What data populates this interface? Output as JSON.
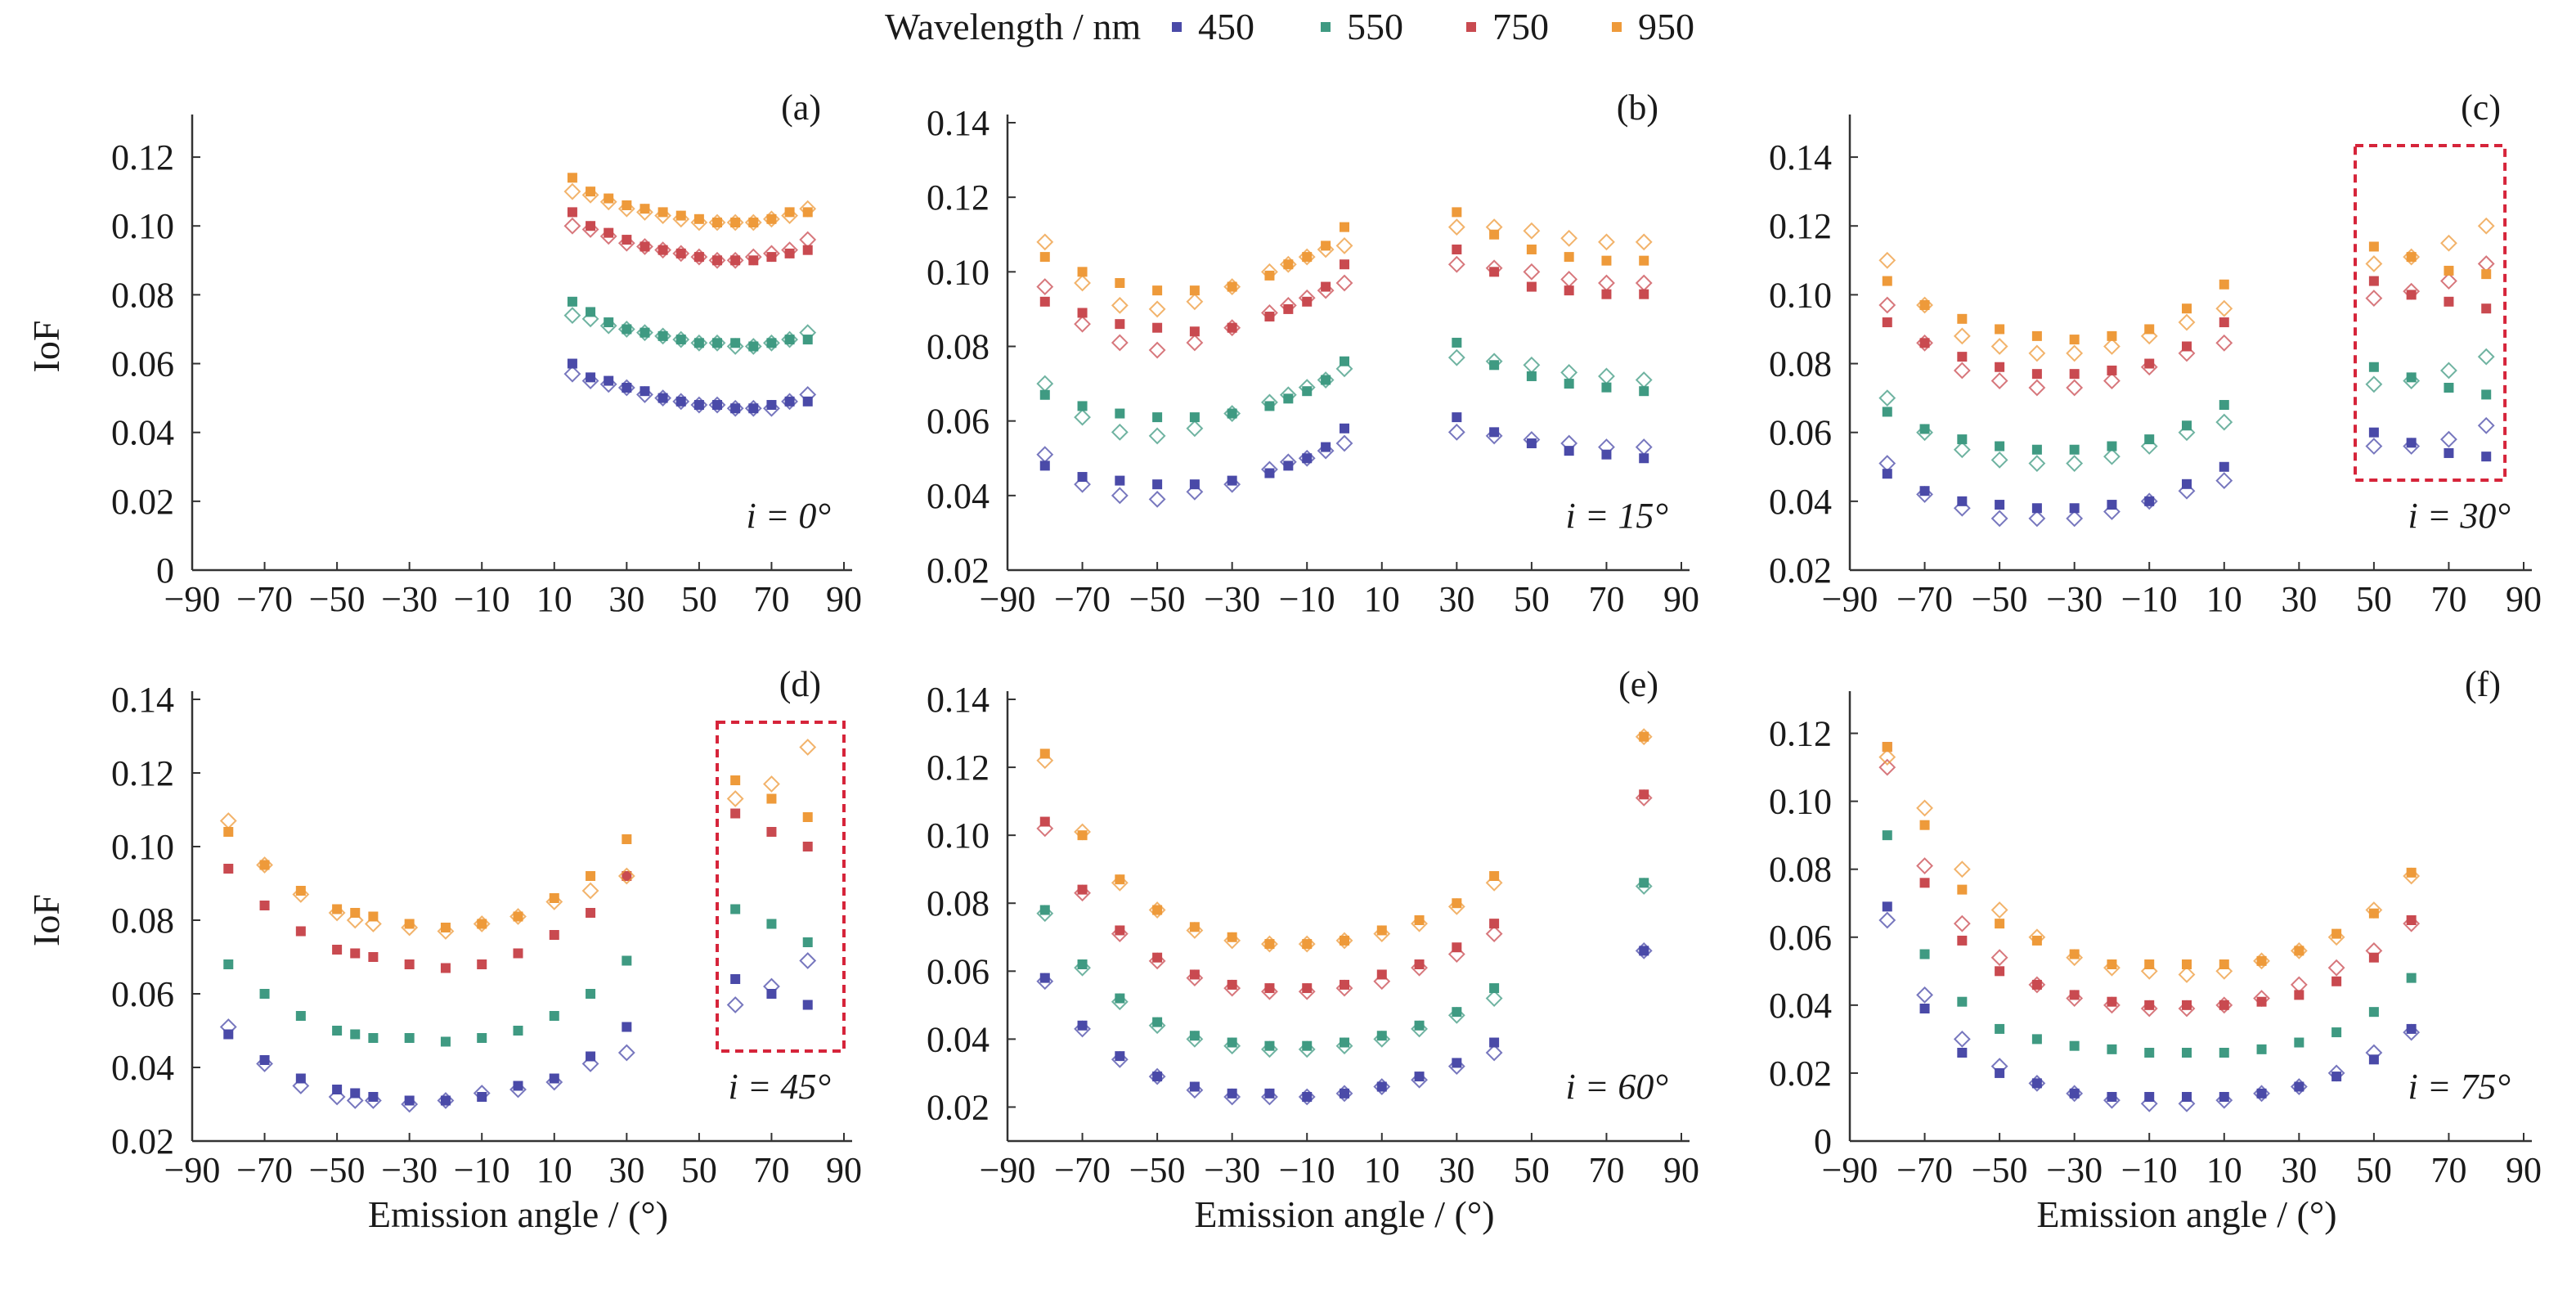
{
  "legend": {
    "title": "Wavelength / nm",
    "items": [
      {
        "label": "450",
        "color": "#4a4aa8"
      },
      {
        "label": "550",
        "color": "#3f9a82"
      },
      {
        "label": "750",
        "color": "#c94a50"
      },
      {
        "label": "950",
        "color": "#ee9a3a"
      }
    ]
  },
  "shared": {
    "ylabel": "IoF",
    "xlabel": "Emission angle / (°)",
    "xticks": [
      -90,
      -70,
      -50,
      -30,
      -10,
      10,
      30,
      50,
      70,
      90
    ],
    "xtick_labels": [
      "−90",
      "−70",
      "−50",
      "−30",
      "−10",
      "10",
      "30",
      "50",
      "70",
      "90"
    ]
  },
  "chart_data": [
    {
      "type": "scatter",
      "panel": "(a)",
      "incidence_label": "i = 0°",
      "xlim": [
        -90,
        90
      ],
      "ylim": [
        0,
        0.13
      ],
      "yticks": [
        "0",
        "0.02",
        "0.04",
        "0.06",
        "0.08",
        "0.10",
        "0.12"
      ],
      "x": [
        15,
        20,
        25,
        30,
        35,
        40,
        45,
        50,
        55,
        60,
        65,
        70,
        75,
        80
      ],
      "series": [
        {
          "name": "450",
          "measured": [
            0.06,
            0.056,
            0.055,
            0.053,
            0.052,
            0.05,
            0.049,
            0.048,
            0.048,
            0.047,
            0.047,
            0.048,
            0.049,
            0.049
          ],
          "modeled": [
            0.057,
            0.055,
            0.054,
            0.053,
            0.051,
            0.05,
            0.049,
            0.048,
            0.048,
            0.047,
            0.047,
            0.047,
            0.049,
            0.051
          ]
        },
        {
          "name": "550",
          "measured": [
            0.078,
            0.075,
            0.072,
            0.07,
            0.069,
            0.068,
            0.067,
            0.066,
            0.066,
            0.066,
            0.065,
            0.066,
            0.067,
            0.067
          ],
          "modeled": [
            0.074,
            0.073,
            0.071,
            0.07,
            0.069,
            0.068,
            0.067,
            0.066,
            0.066,
            0.065,
            0.065,
            0.066,
            0.067,
            0.069
          ]
        },
        {
          "name": "750",
          "measured": [
            0.104,
            0.1,
            0.098,
            0.096,
            0.094,
            0.093,
            0.092,
            0.091,
            0.09,
            0.09,
            0.09,
            0.091,
            0.092,
            0.093
          ],
          "modeled": [
            0.1,
            0.099,
            0.097,
            0.095,
            0.094,
            0.093,
            0.092,
            0.091,
            0.09,
            0.09,
            0.091,
            0.092,
            0.093,
            0.096
          ]
        },
        {
          "name": "950",
          "measured": [
            0.114,
            0.11,
            0.108,
            0.106,
            0.105,
            0.104,
            0.103,
            0.102,
            0.101,
            0.101,
            0.101,
            0.102,
            0.104,
            0.104
          ],
          "modeled": [
            0.11,
            0.109,
            0.107,
            0.105,
            0.104,
            0.103,
            0.102,
            0.101,
            0.101,
            0.101,
            0.101,
            0.102,
            0.103,
            0.105
          ]
        }
      ]
    },
    {
      "type": "scatter",
      "panel": "(b)",
      "incidence_label": "i = 15°",
      "xlim": [
        -90,
        90
      ],
      "ylim": [
        0.02,
        0.14
      ],
      "yticks": [
        "0.02",
        "0.04",
        "0.06",
        "0.08",
        "0.10",
        "0.12",
        "0.14"
      ],
      "x": [
        -80,
        -70,
        -60,
        -50,
        -40,
        -30,
        -20,
        -15,
        -10,
        -5,
        0,
        30,
        40,
        50,
        60,
        70,
        80
      ],
      "series": [
        {
          "name": "450",
          "measured": [
            0.048,
            0.045,
            0.044,
            0.043,
            0.043,
            0.044,
            0.046,
            0.048,
            0.05,
            0.053,
            0.058,
            0.061,
            0.057,
            0.054,
            0.052,
            0.051,
            0.05
          ],
          "modeled": [
            0.051,
            0.043,
            0.04,
            0.039,
            0.041,
            0.043,
            0.047,
            0.049,
            0.05,
            0.052,
            0.054,
            0.057,
            0.056,
            0.055,
            0.054,
            0.053,
            0.053
          ]
        },
        {
          "name": "550",
          "measured": [
            0.067,
            0.064,
            0.062,
            0.061,
            0.061,
            0.062,
            0.064,
            0.066,
            0.068,
            0.071,
            0.076,
            0.081,
            0.075,
            0.072,
            0.07,
            0.069,
            0.068
          ],
          "modeled": [
            0.07,
            0.061,
            0.057,
            0.056,
            0.058,
            0.062,
            0.065,
            0.067,
            0.069,
            0.071,
            0.074,
            0.077,
            0.076,
            0.075,
            0.073,
            0.072,
            0.071
          ]
        },
        {
          "name": "750",
          "measured": [
            0.092,
            0.089,
            0.086,
            0.085,
            0.084,
            0.085,
            0.088,
            0.09,
            0.092,
            0.096,
            0.102,
            0.106,
            0.1,
            0.096,
            0.095,
            0.094,
            0.094
          ],
          "modeled": [
            0.096,
            0.086,
            0.081,
            0.079,
            0.081,
            0.085,
            0.089,
            0.091,
            0.093,
            0.095,
            0.097,
            0.102,
            0.101,
            0.1,
            0.098,
            0.097,
            0.097
          ]
        },
        {
          "name": "950",
          "measured": [
            0.104,
            0.1,
            0.097,
            0.095,
            0.095,
            0.096,
            0.099,
            0.102,
            0.104,
            0.107,
            0.112,
            0.116,
            0.11,
            0.106,
            0.104,
            0.103,
            0.103
          ],
          "modeled": [
            0.108,
            0.097,
            0.091,
            0.09,
            0.092,
            0.096,
            0.1,
            0.102,
            0.104,
            0.106,
            0.107,
            0.112,
            0.112,
            0.111,
            0.109,
            0.108,
            0.108
          ]
        }
      ]
    },
    {
      "type": "scatter",
      "panel": "(c)",
      "incidence_label": "i = 30°",
      "xlim": [
        -90,
        90
      ],
      "ylim": [
        0.02,
        0.15
      ],
      "yticks": [
        "0.02",
        "0.04",
        "0.06",
        "0.08",
        "0.10",
        "0.12",
        "0.14"
      ],
      "highlight_x_range": [
        45,
        85
      ],
      "x": [
        -80,
        -70,
        -60,
        -50,
        -40,
        -30,
        -20,
        -10,
        0,
        10,
        50,
        60,
        70,
        80
      ],
      "series": [
        {
          "name": "450",
          "measured": [
            0.048,
            0.043,
            0.04,
            0.039,
            0.038,
            0.038,
            0.039,
            0.04,
            0.045,
            0.05,
            0.06,
            0.057,
            0.054,
            0.053
          ],
          "modeled": [
            0.051,
            0.042,
            0.038,
            0.035,
            0.035,
            0.035,
            0.037,
            0.04,
            0.043,
            0.046,
            0.056,
            0.056,
            0.058,
            0.062
          ]
        },
        {
          "name": "550",
          "measured": [
            0.066,
            0.061,
            0.058,
            0.056,
            0.055,
            0.055,
            0.056,
            0.058,
            0.062,
            0.068,
            0.079,
            0.076,
            0.073,
            0.071
          ],
          "modeled": [
            0.07,
            0.06,
            0.055,
            0.052,
            0.051,
            0.051,
            0.053,
            0.056,
            0.06,
            0.063,
            0.074,
            0.075,
            0.078,
            0.082
          ]
        },
        {
          "name": "750",
          "measured": [
            0.092,
            0.086,
            0.082,
            0.079,
            0.077,
            0.077,
            0.078,
            0.08,
            0.085,
            0.092,
            0.104,
            0.1,
            0.098,
            0.096
          ],
          "modeled": [
            0.097,
            0.086,
            0.078,
            0.075,
            0.073,
            0.073,
            0.075,
            0.079,
            0.083,
            0.086,
            0.099,
            0.101,
            0.104,
            0.109
          ]
        },
        {
          "name": "950",
          "measured": [
            0.104,
            0.097,
            0.093,
            0.09,
            0.088,
            0.087,
            0.088,
            0.09,
            0.096,
            0.103,
            0.114,
            0.111,
            0.107,
            0.106
          ],
          "modeled": [
            0.11,
            0.097,
            0.088,
            0.085,
            0.083,
            0.083,
            0.085,
            0.088,
            0.092,
            0.096,
            0.109,
            0.111,
            0.115,
            0.12
          ]
        }
      ]
    },
    {
      "type": "scatter",
      "panel": "(d)",
      "incidence_label": "i = 45°",
      "xlim": [
        -90,
        90
      ],
      "ylim": [
        0.02,
        0.14
      ],
      "yticks": [
        "0.02",
        "0.04",
        "0.06",
        "0.08",
        "0.10",
        "0.12",
        "0.14"
      ],
      "highlight_x_range": [
        55,
        90
      ],
      "x": [
        -80,
        -70,
        -60,
        -50,
        -45,
        -40,
        -30,
        -20,
        -10,
        0,
        10,
        20,
        30,
        60,
        70,
        80
      ],
      "series": [
        {
          "name": "450",
          "measured": [
            0.049,
            0.042,
            0.037,
            0.034,
            0.033,
            0.032,
            0.031,
            0.031,
            0.032,
            0.035,
            0.037,
            0.043,
            0.051,
            0.064,
            0.06,
            0.057
          ],
          "modeled": [
            0.051,
            0.041,
            0.035,
            0.032,
            0.031,
            0.031,
            0.03,
            0.031,
            0.033,
            0.034,
            0.036,
            0.041,
            0.044,
            0.057,
            0.062,
            0.069
          ]
        },
        {
          "name": "550",
          "measured": [
            0.068,
            0.06,
            0.054,
            0.05,
            0.049,
            0.048,
            0.048,
            0.047,
            0.048,
            0.05,
            0.054,
            0.06,
            0.069,
            0.083,
            0.079,
            0.074
          ]
        },
        {
          "name": "750",
          "measured": [
            0.094,
            0.084,
            0.077,
            0.072,
            0.071,
            0.07,
            0.068,
            0.067,
            0.068,
            0.071,
            0.076,
            0.082,
            0.092,
            0.109,
            0.104,
            0.1
          ]
        },
        {
          "name": "950",
          "measured": [
            0.104,
            0.095,
            0.088,
            0.083,
            0.082,
            0.081,
            0.079,
            0.078,
            0.079,
            0.081,
            0.086,
            0.092,
            0.102,
            0.118,
            0.113,
            0.108
          ],
          "modeled": [
            0.107,
            0.095,
            0.087,
            0.082,
            0.08,
            0.079,
            0.078,
            0.077,
            0.079,
            0.081,
            0.085,
            0.088,
            0.092,
            0.113,
            0.117,
            0.127
          ]
        }
      ]
    },
    {
      "type": "scatter",
      "panel": "(e)",
      "incidence_label": "i = 60°",
      "xlim": [
        -90,
        90
      ],
      "ylim": [
        0.01,
        0.14
      ],
      "yticks": [
        "0.02",
        "0.04",
        "0.06",
        "0.08",
        "0.10",
        "0.12",
        "0.14"
      ],
      "x": [
        -80,
        -70,
        -60,
        -50,
        -40,
        -30,
        -20,
        -10,
        0,
        10,
        20,
        30,
        40,
        80
      ],
      "series": [
        {
          "name": "450",
          "measured": [
            0.058,
            0.044,
            0.035,
            0.029,
            0.026,
            0.024,
            0.024,
            0.023,
            0.024,
            0.026,
            0.029,
            0.033,
            0.039,
            0.066
          ],
          "modeled": [
            0.057,
            0.043,
            0.034,
            0.029,
            0.025,
            0.023,
            0.023,
            0.023,
            0.024,
            0.026,
            0.028,
            0.032,
            0.036,
            0.066
          ]
        },
        {
          "name": "550",
          "measured": [
            0.078,
            0.062,
            0.052,
            0.045,
            0.041,
            0.039,
            0.038,
            0.038,
            0.039,
            0.041,
            0.044,
            0.048,
            0.055,
            0.086
          ],
          "modeled": [
            0.077,
            0.061,
            0.051,
            0.044,
            0.04,
            0.038,
            0.037,
            0.037,
            0.038,
            0.04,
            0.043,
            0.047,
            0.052,
            0.085
          ]
        },
        {
          "name": "750",
          "measured": [
            0.104,
            0.084,
            0.072,
            0.064,
            0.059,
            0.056,
            0.055,
            0.055,
            0.056,
            0.059,
            0.062,
            0.067,
            0.074,
            0.112
          ],
          "modeled": [
            0.102,
            0.083,
            0.071,
            0.063,
            0.058,
            0.055,
            0.054,
            0.054,
            0.055,
            0.057,
            0.061,
            0.065,
            0.071,
            0.111
          ]
        },
        {
          "name": "950",
          "measured": [
            0.124,
            0.1,
            0.087,
            0.078,
            0.073,
            0.07,
            0.068,
            0.068,
            0.069,
            0.072,
            0.075,
            0.08,
            0.088,
            0.129
          ],
          "modeled": [
            0.122,
            0.101,
            0.086,
            0.078,
            0.072,
            0.069,
            0.068,
            0.068,
            0.069,
            0.071,
            0.074,
            0.079,
            0.086,
            0.129
          ]
        }
      ]
    },
    {
      "type": "scatter",
      "panel": "(f)",
      "incidence_label": "i = 75°",
      "xlim": [
        -90,
        90
      ],
      "ylim": [
        0,
        0.13
      ],
      "yticks": [
        "0",
        "0.02",
        "0.04",
        "0.06",
        "0.08",
        "0.10",
        "0.12"
      ],
      "x": [
        -80,
        -70,
        -60,
        -50,
        -40,
        -30,
        -20,
        -10,
        0,
        10,
        20,
        30,
        40,
        50,
        60
      ],
      "series": [
        {
          "name": "450",
          "measured": [
            0.069,
            0.039,
            0.026,
            0.02,
            0.017,
            0.014,
            0.013,
            0.013,
            0.013,
            0.013,
            0.014,
            0.016,
            0.019,
            0.024,
            0.033
          ],
          "modeled": [
            0.065,
            0.043,
            0.03,
            0.022,
            0.017,
            0.014,
            0.012,
            0.011,
            0.011,
            0.012,
            0.014,
            0.016,
            0.02,
            0.026,
            0.032
          ]
        },
        {
          "name": "550",
          "measured": [
            0.09,
            0.055,
            0.041,
            0.033,
            0.03,
            0.028,
            0.027,
            0.026,
            0.026,
            0.026,
            0.027,
            0.029,
            0.032,
            0.038,
            0.048
          ]
        },
        {
          "name": "750",
          "measured": [
            0.116,
            0.076,
            0.059,
            0.05,
            0.046,
            0.043,
            0.041,
            0.04,
            0.04,
            0.04,
            0.041,
            0.043,
            0.047,
            0.054,
            0.065
          ],
          "modeled": [
            0.11,
            0.081,
            0.064,
            0.054,
            0.046,
            0.042,
            0.04,
            0.039,
            0.039,
            0.04,
            0.042,
            0.046,
            0.051,
            0.056,
            0.064
          ]
        },
        {
          "name": "950",
          "measured": [
            0.116,
            0.093,
            0.074,
            0.064,
            0.059,
            0.055,
            0.052,
            0.052,
            0.052,
            0.052,
            0.053,
            0.056,
            0.061,
            0.067,
            0.079
          ],
          "modeled": [
            0.113,
            0.098,
            0.08,
            0.068,
            0.06,
            0.054,
            0.051,
            0.05,
            0.049,
            0.05,
            0.053,
            0.056,
            0.06,
            0.068,
            0.078
          ]
        }
      ]
    }
  ]
}
